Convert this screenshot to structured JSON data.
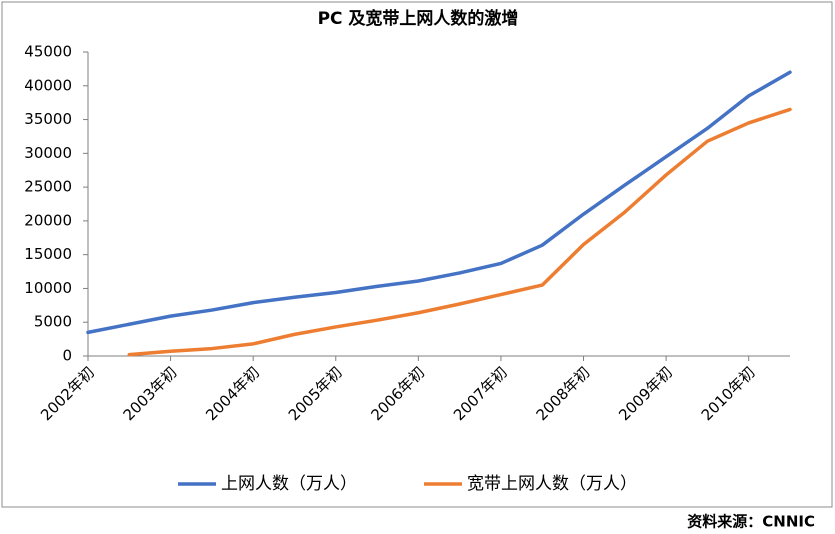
{
  "chart_data": {
    "type": "line",
    "title": "PC 及宽带上网人数的激增",
    "source": "资料来源：CNNIC",
    "categories": [
      "2002年初",
      null,
      "2003年初",
      null,
      "2004年初",
      null,
      "2005年初",
      null,
      "2006年初",
      null,
      "2007年初",
      null,
      "2008年初",
      null,
      "2009年初",
      null,
      "2010年初",
      null
    ],
    "series": [
      {
        "name": "上网人数（万人）",
        "color": "#4472c4",
        "values": [
          3500,
          4700,
          5900,
          6800,
          7900,
          8700,
          9400,
          10300,
          11100,
          12300,
          13700,
          16400,
          21000,
          25300,
          29500,
          33700,
          38500,
          42000
        ]
      },
      {
        "name": "宽带上网人数（万人）",
        "color": "#ed7d31",
        "values": [
          null,
          200,
          700,
          1100,
          1800,
          3200,
          4300,
          5300,
          6400,
          7700,
          9100,
          10500,
          16500,
          21300,
          26800,
          31800,
          34500,
          36500
        ]
      }
    ],
    "ylim": [
      0,
      45000
    ],
    "yticks": [
      0,
      5000,
      10000,
      15000,
      20000,
      25000,
      30000,
      35000,
      40000,
      45000
    ],
    "legend": "bottom"
  }
}
